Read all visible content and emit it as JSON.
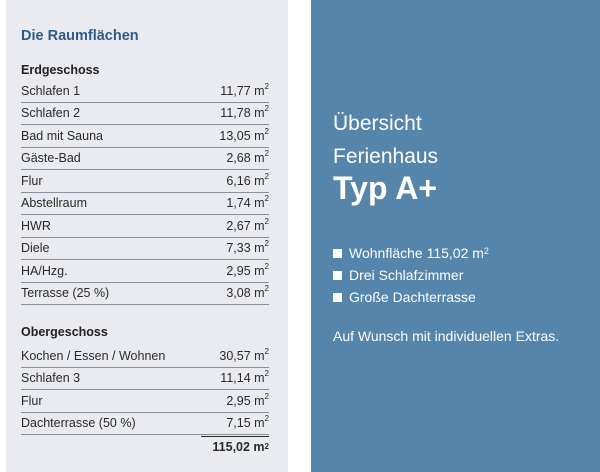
{
  "left": {
    "title": "Die Raumflächen",
    "ground_floor": {
      "title": "Erdgeschoss",
      "rows": [
        {
          "name": "Schlafen 1",
          "value": "11,77 m",
          "unit_sup": "2"
        },
        {
          "name": "Schlafen 2",
          "value": "11,78 m",
          "unit_sup": "2"
        },
        {
          "name": "Bad mit Sauna",
          "value": "13,05 m",
          "unit_sup": "2"
        },
        {
          "name": "Gäste-Bad",
          "value": "2,68 m",
          "unit_sup": "2"
        },
        {
          "name": "Flur",
          "value": "6,16 m",
          "unit_sup": "2"
        },
        {
          "name": "Abstellraum",
          "value": "1,74 m",
          "unit_sup": "2"
        },
        {
          "name": "HWR",
          "value": "2,67 m",
          "unit_sup": "2"
        },
        {
          "name": "Diele",
          "value": "7,33 m",
          "unit_sup": "2"
        },
        {
          "name": "HA/Hzg.",
          "value": "2,95 m",
          "unit_sup": "2"
        },
        {
          "name": "Terrasse (25 %)",
          "value": "3,08 m",
          "unit_sup": "2"
        }
      ]
    },
    "upper_floor": {
      "title": "Obergeschoss",
      "rows": [
        {
          "name": "Kochen / Essen / Wohnen",
          "value": "30,57 m",
          "unit_sup": "2"
        },
        {
          "name": "Schlafen 3",
          "value": "11,14 m",
          "unit_sup": "2"
        },
        {
          "name": "Flur",
          "value": "2,95 m",
          "unit_sup": "2"
        },
        {
          "name": "Dachterrasse (50 %)",
          "value": "7,15 m",
          "unit_sup": "2"
        }
      ]
    },
    "total": {
      "value": "115,02 m",
      "unit_sup": "2"
    }
  },
  "right": {
    "subtitle_1": "Übersicht",
    "subtitle_2": "Ferienhaus",
    "heading": "Typ A+",
    "features": [
      {
        "text": "Wohnfläche 115,02 m",
        "sup": "2"
      },
      {
        "text": "Drei Schlafzimmer",
        "sup": ""
      },
      {
        "text": "Große Dachterrasse",
        "sup": ""
      }
    ],
    "note": "Auf Wunsch mit individuellen Extras."
  },
  "colors": {
    "left_bg": "#e9ebf1",
    "right_bg": "#5585ab",
    "title_accent": "#2f5c86"
  }
}
